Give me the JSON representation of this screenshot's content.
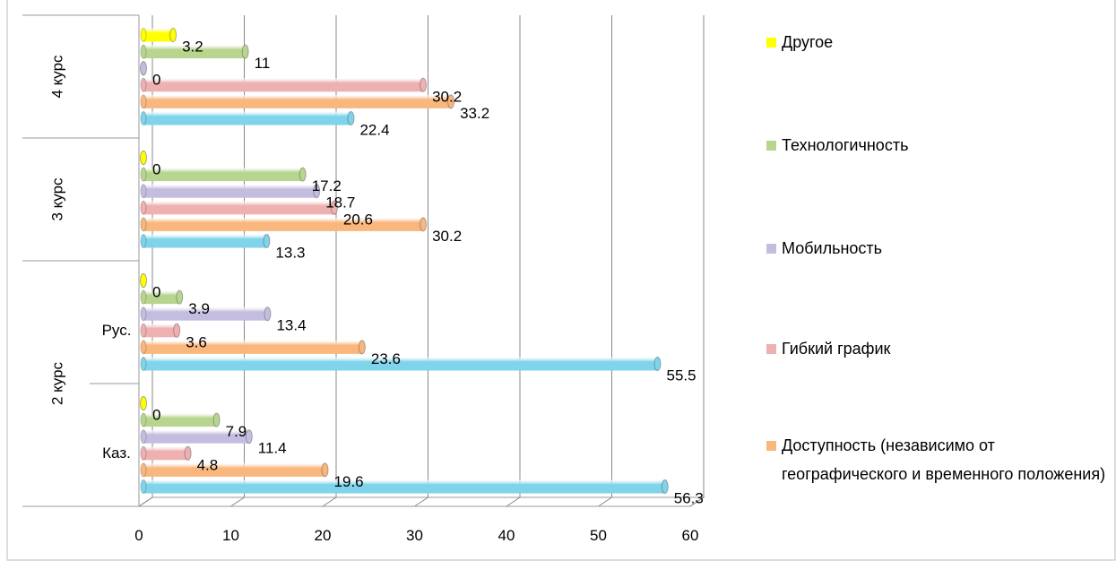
{
  "chart_data": {
    "type": "bar",
    "orientation": "horizontal",
    "groups": [
      {
        "label": "2 курс",
        "items": [
          "Каз.",
          "Рус."
        ]
      },
      {
        "label": "3 курс",
        "items": [
          null
        ]
      },
      {
        "label": "4 курс",
        "items": [
          null
        ]
      }
    ],
    "series": [
      {
        "color": "#7fd3ea",
        "values": [
          56.3,
          55.5,
          13.3,
          22.4
        ]
      },
      {
        "name": "Доступность (независимо от географического и временного положения)",
        "color": "#f9b77e",
        "values": [
          19.6,
          23.6,
          30.2,
          33.2
        ]
      },
      {
        "name": "Гибкий график",
        "color": "#eeb0b0",
        "values": [
          4.8,
          3.6,
          20.6,
          30.2
        ]
      },
      {
        "name": "Мобильность",
        "color": "#c5bde0",
        "values": [
          11.4,
          13.4,
          18.7,
          0
        ]
      },
      {
        "name": "Технологичность",
        "color": "#b8d58f",
        "values": [
          7.9,
          3.9,
          17.2,
          11
        ]
      },
      {
        "name": "Другое",
        "color": "#ffff00",
        "values": [
          0,
          0,
          0,
          3.2
        ]
      }
    ],
    "xlim": [
      0,
      60
    ],
    "xticks": [
      0,
      10,
      20,
      30,
      40,
      50,
      60
    ],
    "grid": true,
    "legend": "right"
  }
}
